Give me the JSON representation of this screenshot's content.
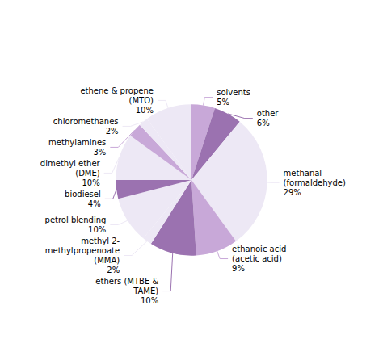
{
  "chart_data": {
    "type": "pie",
    "categories": [
      "solvents\n5%",
      "other\n6%",
      "methanal\n(formaldehyde)\n29%",
      "ethanoic acid\n(acetic acid)\n9%",
      "ethers (MTBE &\nTAME)\n10%",
      "methyl 2-\nmethylpropenoate\n(MMA)\n2%",
      "petrol blending\n10%",
      "biodiesel\n4%",
      "dimethyl ether\n(DME)\n10%",
      "methylamines\n3%",
      "chloromethanes\n2%",
      "ethene & propene\n(MTO)\n10%"
    ],
    "values": [
      5,
      6,
      29,
      9,
      10,
      2,
      10,
      4,
      10,
      3,
      2,
      10
    ],
    "colors": [
      "#c8a8d8",
      "#9b72b0",
      "#ede8f5",
      "#c8a8d8",
      "#9b72b0",
      "#ede8f5",
      "#ede8f5",
      "#9b72b0",
      "#ede8f5",
      "#c8a8d8",
      "#ede8f5",
      "#ede8f5"
    ]
  }
}
